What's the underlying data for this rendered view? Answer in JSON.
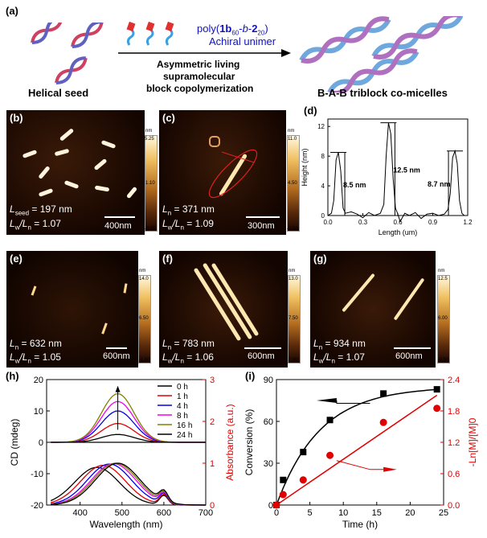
{
  "panel_a": {
    "label": "(a)",
    "seed_label": "Helical seed",
    "unimer_line1_pre": "poly(",
    "unimer_bold1": "1b",
    "unimer_sub1": "60",
    "unimer_mid": "-",
    "unimer_italic": "b",
    "unimer_mid2": "-",
    "unimer_bold2": "2",
    "unimer_sub2": "20",
    "unimer_close": ")",
    "unimer_line2": "Achiral unimer",
    "process_line1": "Asymmetric living",
    "process_line2": "supramolecular",
    "process_line3": "block copolymerization",
    "product_label": "B-A-B triblock co-micelles"
  },
  "afm": {
    "b": {
      "label": "(b)",
      "line1_L": "L",
      "line1_sub": "seed",
      "line1_val": " = 197 nm",
      "line2": "L",
      "line2_sub": "w",
      "line2_mid": "/L",
      "line2_sub2": "n",
      "line2_val": " = 1.07",
      "scale": "400nm",
      "cb_top": "nm",
      "cb_max": "5.25",
      "cb_mid": "1.10",
      "cb_min": "-3.05"
    },
    "c": {
      "label": "(c)",
      "line1_L": "L",
      "line1_sub": "n",
      "line1_val": " = 371 nm",
      "line2": "L",
      "line2_sub": "w",
      "line2_mid": "/L",
      "line2_sub2": "n",
      "line2_val": " = 1.09",
      "scale": "300nm",
      "cb_top": "nm",
      "cb_max": "11.0",
      "cb_mid": "4.50",
      "cb_min": "-2.00"
    },
    "e": {
      "label": "(e)",
      "line1_L": "L",
      "line1_sub": "n",
      "line1_val": " = 632 nm",
      "line2": "L",
      "line2_sub": "w",
      "line2_mid": "/L",
      "line2_sub2": "n",
      "line2_val": " = 1.05",
      "scale": "600nm",
      "cb_top": "nm",
      "cb_max": "14.0",
      "cb_mid": "6.50",
      "cb_min": "-1.00"
    },
    "f": {
      "label": "(f)",
      "line1_L": "L",
      "line1_sub": "n",
      "line1_val": " = 783 nm",
      "line2": "L",
      "line2_sub": "w",
      "line2_mid": "/L",
      "line2_sub2": "n",
      "line2_val": " = 1.06",
      "scale": "600nm",
      "cb_top": "nm",
      "cb_max": "13.0",
      "cb_mid": "7.50",
      "cb_min": "2.00"
    },
    "g": {
      "label": "(g)",
      "line1_L": "L",
      "line1_sub": "n",
      "line1_val": " = 934 nm",
      "line2": "L",
      "line2_sub": "w",
      "line2_mid": "/L",
      "line2_sub2": "n",
      "line2_val": " = 1.07",
      "scale": "600nm",
      "cb_top": "nm",
      "cb_max": "12.5",
      "cb_mid": "6.00",
      "cb_min": "-0.50"
    }
  },
  "chart_data": [
    {
      "id": "d",
      "label": "(d)",
      "type": "line",
      "xlabel": "Length (um)",
      "ylabel": "Height (nm)",
      "xlim": [
        0.0,
        1.2
      ],
      "ylim": [
        0,
        13
      ],
      "xticks": [
        "0.0",
        "0.3",
        "0.6",
        "0.9",
        "1.2"
      ],
      "yticks": [
        "0",
        "4",
        "8",
        "12"
      ],
      "x": [
        0.0,
        0.03,
        0.05,
        0.07,
        0.09,
        0.11,
        0.13,
        0.15,
        0.2,
        0.25,
        0.3,
        0.35,
        0.4,
        0.45,
        0.48,
        0.5,
        0.52,
        0.54,
        0.56,
        0.58,
        0.6,
        0.62,
        0.66,
        0.7,
        0.75,
        0.8,
        0.85,
        0.9,
        0.95,
        1.0,
        1.03,
        1.05,
        1.07,
        1.09,
        1.11,
        1.13,
        1.15,
        1.17,
        1.2
      ],
      "y": [
        0,
        0.3,
        2,
        7.5,
        8.5,
        6,
        1,
        0.3,
        0.5,
        0.2,
        -0.3,
        0.4,
        0,
        0.3,
        1.5,
        8,
        12.5,
        11,
        5,
        1,
        0.2,
        -0.8,
        0.3,
        0,
        0.4,
        -0.4,
        0.2,
        0.3,
        0,
        0.2,
        0.8,
        3,
        7.8,
        8.7,
        7,
        2,
        0.3,
        0,
        0
      ],
      "annotations": [
        "8.5 nm",
        "12.5 nm",
        "8.7 nm"
      ]
    },
    {
      "id": "h",
      "label": "(h)",
      "type": "line",
      "xlabel": "Wavelength (nm)",
      "ylabel": "CD (mdeg)",
      "y2label": "Absorbance (a.u.)",
      "xlim": [
        320,
        700
      ],
      "ylim": [
        -20,
        20
      ],
      "y2lim": [
        0,
        3
      ],
      "xticks": [
        "400",
        "500",
        "600",
        "700"
      ],
      "yticks": [
        "-20",
        "-10",
        "0",
        "10",
        "20"
      ],
      "y2ticks": [
        "0",
        "1",
        "2",
        "3"
      ],
      "series": [
        {
          "name": "0 h",
          "color": "#000000",
          "cd_peak": 0,
          "abs_peak_nm": 440,
          "abs_peak": 0.9
        },
        {
          "name": "1 h",
          "color": "#e00000",
          "cd_peak": 6,
          "abs_peak_nm": 455,
          "abs_peak": 0.95
        },
        {
          "name": "4 h",
          "color": "#0000ee",
          "cd_peak": 10,
          "abs_peak_nm": 470,
          "abs_peak": 0.98
        },
        {
          "name": "8 h",
          "color": "#ee00ee",
          "cd_peak": 13,
          "abs_peak_nm": 480,
          "abs_peak": 0.99
        },
        {
          "name": "16 h",
          "color": "#808000",
          "cd_peak": 15.5,
          "abs_peak_nm": 485,
          "abs_peak": 1.0
        },
        {
          "name": "24 h",
          "color": "#000000",
          "cd_peak": 2.5,
          "abs_peak_nm": 490,
          "abs_peak": 1.0
        }
      ]
    },
    {
      "id": "i",
      "label": "(i)",
      "type": "scatter",
      "xlabel": "Time (h)",
      "ylabel": "Conversion (%)",
      "y2label": "-Ln[M]/[M]0",
      "xlim": [
        0,
        25
      ],
      "ylim": [
        0,
        90
      ],
      "y2lim": [
        0,
        2.4
      ],
      "xticks": [
        "0",
        "5",
        "10",
        "15",
        "20",
        "25"
      ],
      "yticks": [
        "0",
        "30",
        "60",
        "90"
      ],
      "y2ticks": [
        "0.0",
        "0.6",
        "1.2",
        "1.8",
        "2.4"
      ],
      "series": [
        {
          "name": "Conversion",
          "color": "#000000",
          "x": [
            0,
            1,
            4,
            8,
            16,
            24
          ],
          "y": [
            0,
            18,
            38,
            61,
            80,
            83
          ]
        },
        {
          "name": "-Ln[M]/[M]0",
          "color": "#e00000",
          "x": [
            0,
            1,
            4,
            8,
            16,
            24
          ],
          "y": [
            0,
            0.2,
            0.48,
            0.95,
            1.58,
            1.85
          ]
        }
      ]
    }
  ]
}
